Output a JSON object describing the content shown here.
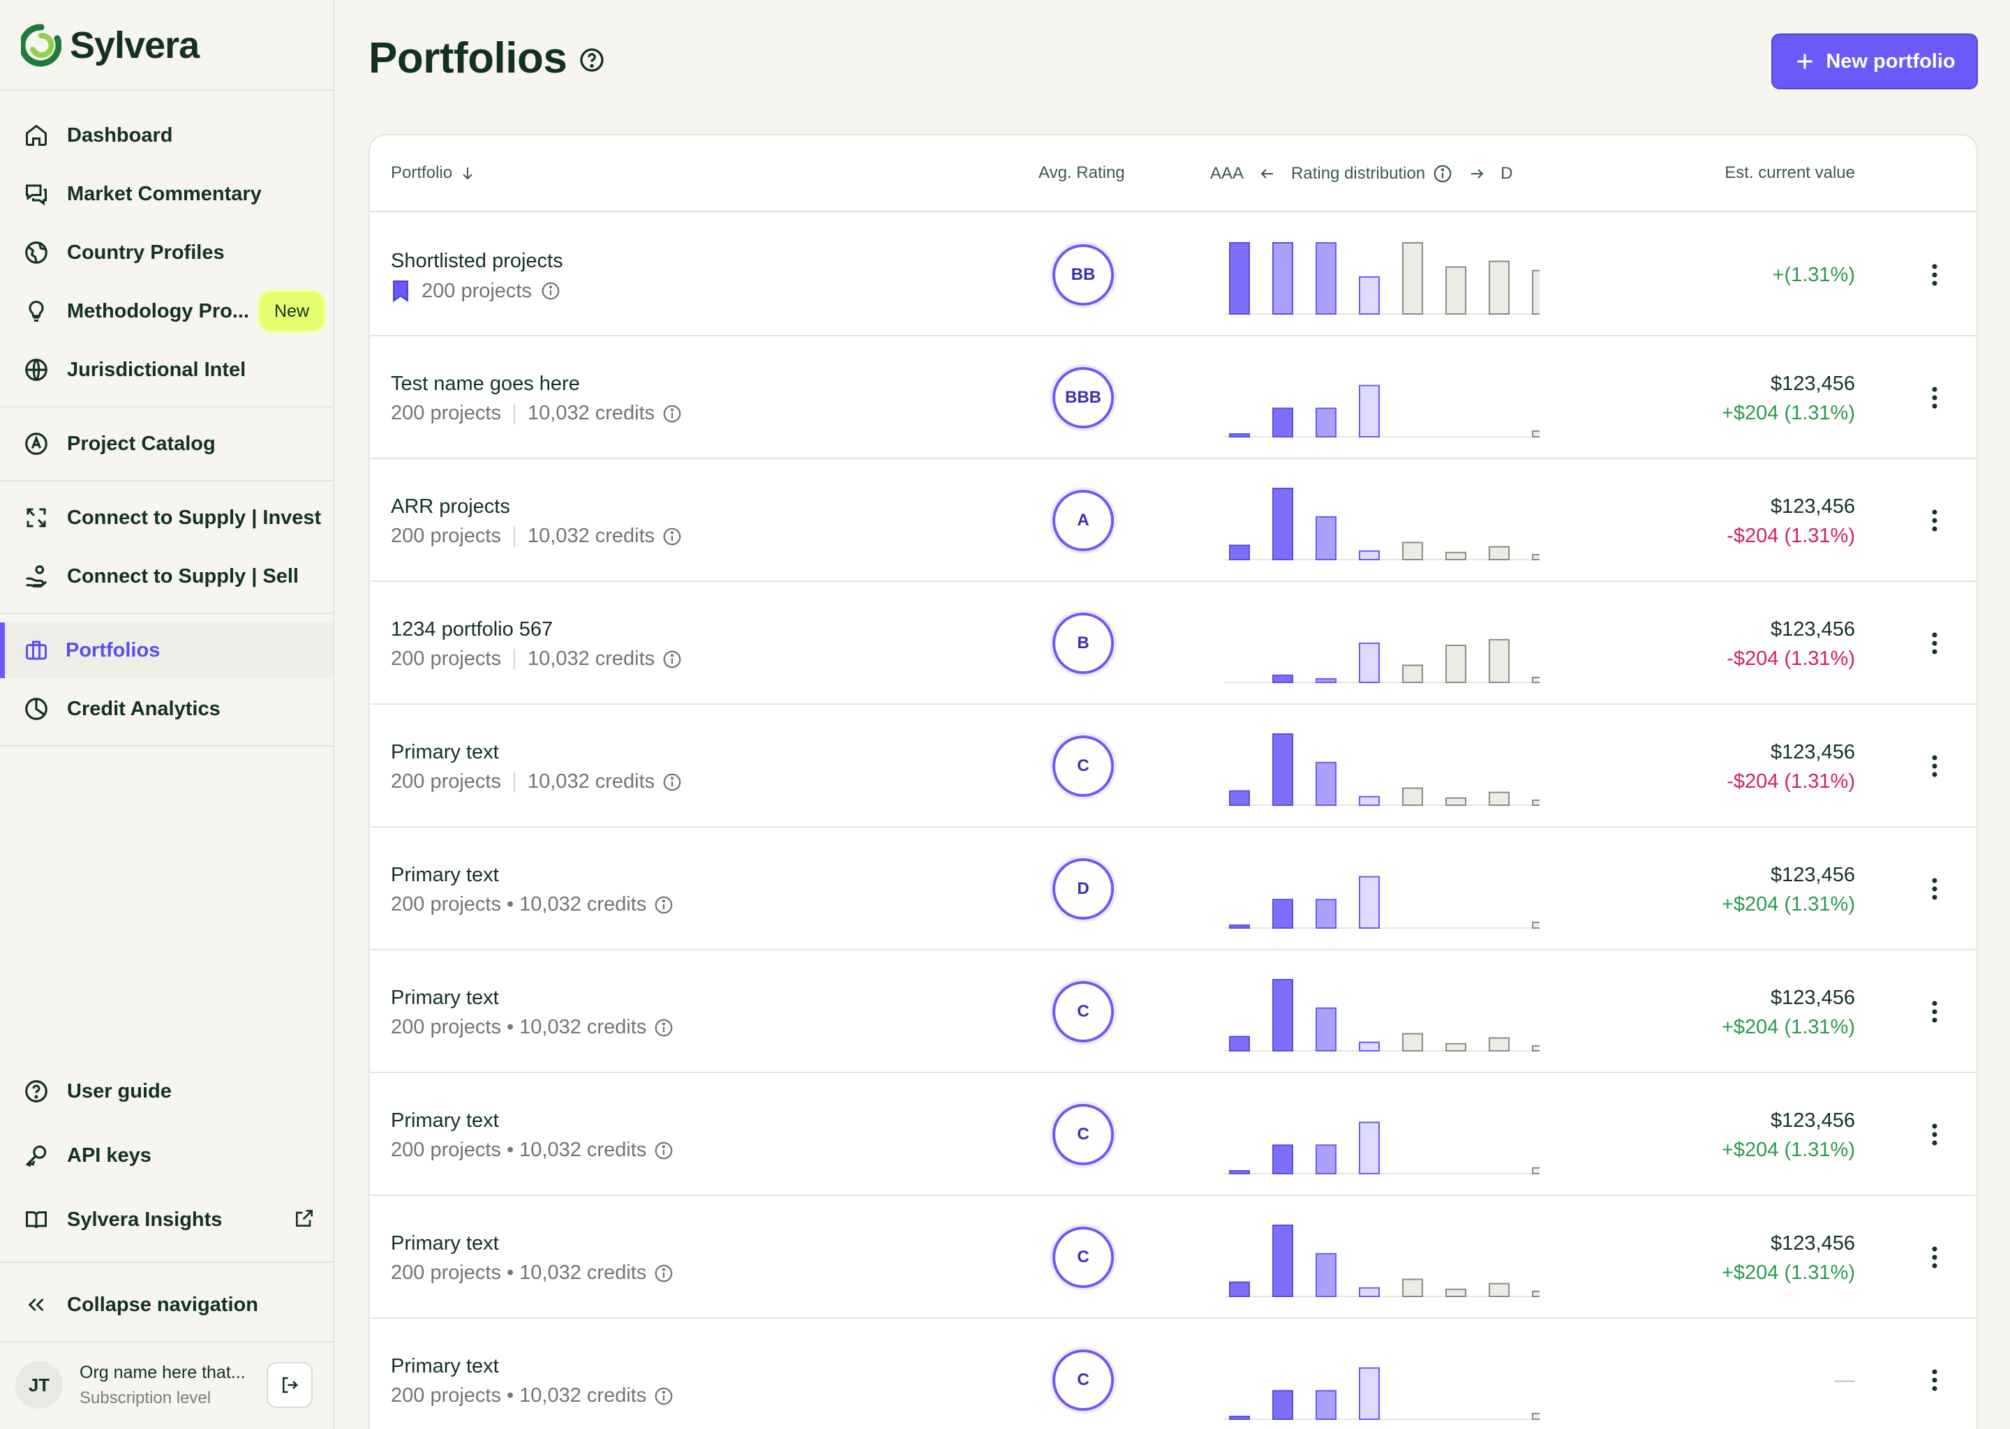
{
  "brand": {
    "name": "Sylvera",
    "accent": "#6a5af9",
    "dark": "#12321f",
    "positive": "#2a9a4a",
    "negative": "#d4205c"
  },
  "sidebar": {
    "items": [
      {
        "label": "Dashboard",
        "icon": "home-icon"
      },
      {
        "label": "Market Commentary",
        "icon": "chat-bubbles-icon"
      },
      {
        "label": "Country Profiles",
        "icon": "globe-pin-icon"
      },
      {
        "label": "Methodology Pro...",
        "icon": "lightbulb-icon",
        "badge": "New"
      },
      {
        "label": "Jurisdictional Intel",
        "icon": "globe-icon"
      },
      {
        "label": "Project Catalog",
        "icon": "compass-icon"
      },
      {
        "label": "Connect to Supply | Invest",
        "icon": "connect-icon"
      },
      {
        "label": "Connect to Supply | Sell",
        "icon": "hand-coins-icon"
      },
      {
        "label": "Portfolios",
        "icon": "briefcase-icon",
        "active": true
      },
      {
        "label": "Credit Analytics",
        "icon": "pie-chart-icon"
      }
    ],
    "bottom": [
      {
        "label": "User guide",
        "icon": "help-circle-icon"
      },
      {
        "label": "API keys",
        "icon": "key-icon"
      },
      {
        "label": "Sylvera Insights",
        "icon": "book-icon"
      }
    ],
    "collapse_label": "Collapse navigation",
    "user": {
      "initials": "JT",
      "org": "Org name here that...",
      "subscription": "Subscription level"
    }
  },
  "page": {
    "title": "Portfolios",
    "new_button": "New portfolio"
  },
  "table": {
    "headers": {
      "portfolio": "Portfolio",
      "avg_rating": "Avg. Rating",
      "dist_left": "AAA",
      "dist_label": "Rating distribution",
      "dist_right": "D",
      "value": "Est. current value"
    },
    "rows": [
      {
        "title": "Shortlisted projects",
        "projects": "200 projects",
        "credits": "",
        "bookmark": true,
        "rating": "BB",
        "value": "",
        "delta": "+(1.31%)",
        "delta_sign": "pos",
        "dist": [
          1.0,
          1.0,
          1.0,
          0.52,
          1.0,
          0.66,
          0.74,
          0.61
        ]
      },
      {
        "title": "Test name goes here",
        "projects": "200 projects",
        "credits": "10,032 credits",
        "sep": "bar",
        "rating": "BBB",
        "value": "$123,456",
        "delta": "+$204 (1.31%)",
        "delta_sign": "pos",
        "dist": [
          0.03,
          0.4,
          0.4,
          0.72,
          0,
          0,
          0,
          0.08
        ]
      },
      {
        "title": "ARR projects",
        "projects": "200 projects",
        "credits": "10,032 credits",
        "sep": "bar",
        "rating": "A",
        "value": "$123,456",
        "delta": "-$204 (1.31%)",
        "delta_sign": "neg",
        "dist": [
          0.2,
          1.0,
          0.6,
          0.12,
          0.24,
          0.1,
          0.18,
          0.07
        ]
      },
      {
        "title": "1234 portfolio 567",
        "projects": "200 projects",
        "credits": "10,032 credits",
        "sep": "bar",
        "rating": "B",
        "value": "$123,456",
        "delta": "-$204 (1.31%)",
        "delta_sign": "neg",
        "dist": [
          0,
          0.1,
          0.05,
          0.55,
          0.24,
          0.52,
          0.6,
          0.07
        ]
      },
      {
        "title": "Primary text",
        "projects": "200 projects",
        "credits": "10,032 credits",
        "sep": "bar",
        "rating": "C",
        "value": "$123,456",
        "delta": "-$204 (1.31%)",
        "delta_sign": "neg",
        "dist": [
          0.2,
          1.0,
          0.6,
          0.12,
          0.24,
          0.1,
          0.18,
          0.07
        ]
      },
      {
        "title": "Primary text",
        "projects": "200 projects",
        "credits": "10,032 credits",
        "sep": "dot",
        "rating": "D",
        "value": "$123,456",
        "delta": "+$204 (1.31%)",
        "delta_sign": "pos",
        "dist": [
          0.03,
          0.4,
          0.4,
          0.72,
          0,
          0,
          0,
          0.08
        ]
      },
      {
        "title": "Primary text",
        "projects": "200 projects",
        "credits": "10,032 credits",
        "sep": "dot",
        "rating": "C",
        "value": "$123,456",
        "delta": "+$204 (1.31%)",
        "delta_sign": "pos",
        "dist": [
          0.2,
          1.0,
          0.6,
          0.12,
          0.24,
          0.1,
          0.18,
          0.07
        ]
      },
      {
        "title": "Primary text",
        "projects": "200 projects",
        "credits": "10,032 credits",
        "sep": "dot",
        "rating": "C",
        "value": "$123,456",
        "delta": "+$204 (1.31%)",
        "delta_sign": "pos",
        "dist": [
          0.03,
          0.4,
          0.4,
          0.72,
          0,
          0,
          0,
          0.08
        ]
      },
      {
        "title": "Primary text",
        "projects": "200 projects",
        "credits": "10,032 credits",
        "sep": "dot",
        "rating": "C",
        "value": "$123,456",
        "delta": "+$204 (1.31%)",
        "delta_sign": "pos",
        "dist": [
          0.2,
          1.0,
          0.6,
          0.12,
          0.24,
          0.1,
          0.18,
          0.07
        ]
      },
      {
        "title": "Primary text",
        "projects": "200 projects",
        "credits": "10,032 credits",
        "sep": "dot",
        "rating": "C",
        "value": "",
        "delta": "—",
        "delta_sign": "none",
        "dist": [
          0.03,
          0.4,
          0.4,
          0.72,
          0,
          0,
          0,
          0.08
        ]
      }
    ]
  }
}
